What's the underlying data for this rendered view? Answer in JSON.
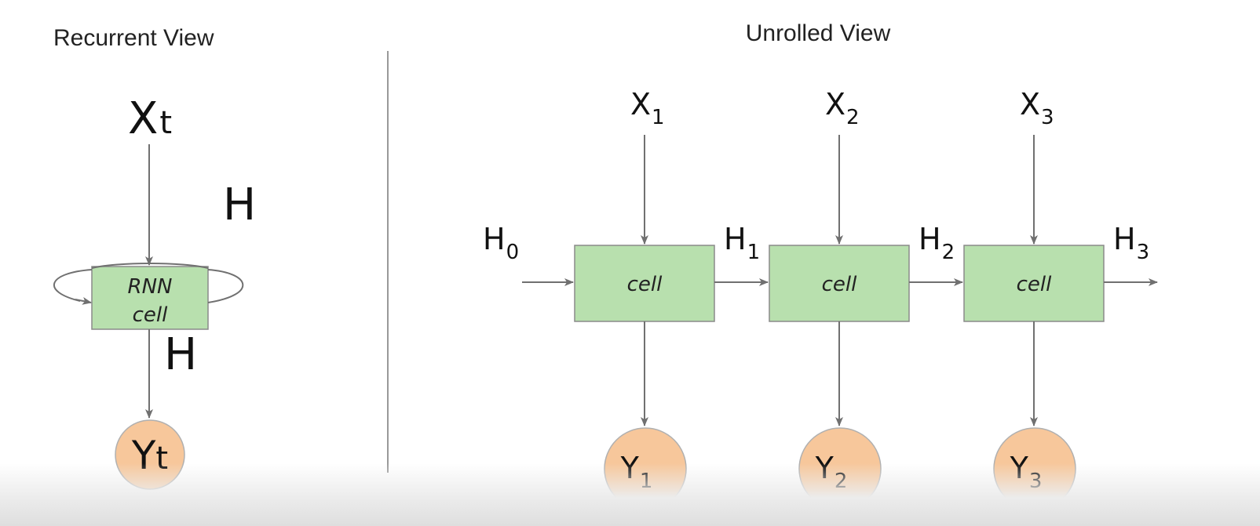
{
  "recurrent": {
    "title": "Recurrent View",
    "input": {
      "main": "X",
      "sub": "t"
    },
    "hidden_top": "H",
    "hidden_bottom": "H",
    "cell_line1": "RNN",
    "cell_line2": "cell",
    "output": {
      "main": "Y",
      "sub": "t"
    }
  },
  "unrolled": {
    "title": "Unrolled View",
    "h0": {
      "main": "H",
      "sub": "0"
    },
    "steps": [
      {
        "x_main": "X",
        "x_sub": "1",
        "cell": "cell",
        "h_main": "H",
        "h_sub": "1",
        "y_main": "Y",
        "y_sub": "1"
      },
      {
        "x_main": "X",
        "x_sub": "2",
        "cell": "cell",
        "h_main": "H",
        "h_sub": "2",
        "y_main": "Y",
        "y_sub": "2"
      },
      {
        "x_main": "X",
        "x_sub": "3",
        "cell": "cell",
        "h_main": "H",
        "h_sub": "3",
        "y_main": "Y",
        "y_sub": "3"
      }
    ]
  },
  "colors": {
    "cell_fill": "#b8e0ae",
    "cell_stroke": "#8a8a8a",
    "node_fill": "#f7c79b",
    "node_stroke": "#b0b0b0",
    "arrow": "#707070",
    "divider": "#999999"
  }
}
